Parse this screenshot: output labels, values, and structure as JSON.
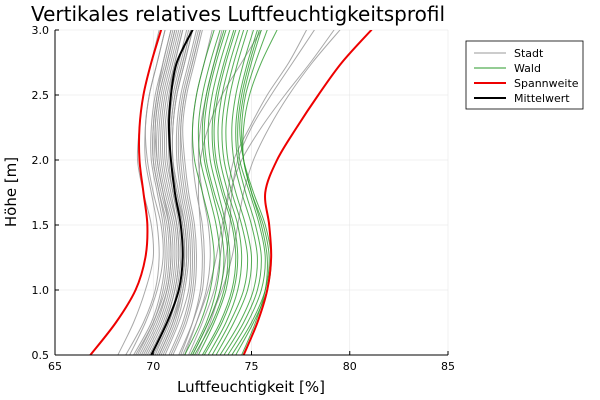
{
  "chart_data": {
    "type": "line",
    "title": "Vertikales relatives Luftfeuchtigkeitsprofil",
    "xlabel": "Luftfeuchtigkeit [%]",
    "ylabel": "Höhe [m]",
    "xlim": [
      65,
      85
    ],
    "ylim": [
      0.5,
      3.0
    ],
    "x_ticks": [
      65,
      70,
      75,
      80,
      85
    ],
    "x_tick_labels": [
      "65",
      "70",
      "75",
      "80",
      "85"
    ],
    "y_ticks": [
      0.5,
      1.0,
      1.5,
      2.0,
      2.5,
      3.0
    ],
    "y_tick_labels": [
      "0.5",
      "1.0",
      "1.5",
      "2.0",
      "2.5",
      "3.0"
    ],
    "grid": true,
    "legend_position": "outside-top-right",
    "colors": {
      "stadt": "#999999",
      "wald": "#2a9a2a",
      "spannweite": "#ee0000",
      "mittelwert": "#000000"
    },
    "y": [
      0.5,
      0.75,
      1.0,
      1.25,
      1.5,
      1.75,
      2.0,
      2.25,
      2.5,
      2.75,
      3.0
    ],
    "series": [
      {
        "name": "Stadt",
        "group": "stadt",
        "values": [
          69.6,
          70.4,
          70.9,
          71.1,
          71.0,
          70.6,
          70.3,
          70.3,
          70.5,
          70.9,
          71.3
        ]
      },
      {
        "name": "",
        "group": "stadt",
        "values": [
          70.3,
          71.0,
          71.5,
          71.7,
          71.6,
          71.3,
          71.0,
          71.0,
          71.2,
          71.6,
          72.0
        ]
      },
      {
        "name": "",
        "group": "stadt",
        "values": [
          68.8,
          69.6,
          70.2,
          70.5,
          70.4,
          70.0,
          69.7,
          69.6,
          69.8,
          70.2,
          70.6
        ]
      },
      {
        "name": "",
        "group": "stadt",
        "values": [
          70.8,
          71.5,
          71.9,
          72.0,
          71.9,
          71.6,
          71.4,
          71.4,
          71.6,
          72.0,
          72.4
        ]
      },
      {
        "name": "",
        "group": "stadt",
        "values": [
          69.2,
          70.0,
          70.6,
          70.8,
          70.7,
          70.3,
          70.0,
          70.0,
          70.2,
          70.5,
          70.9
        ]
      },
      {
        "name": "",
        "group": "stadt",
        "values": [
          70.0,
          70.8,
          71.2,
          71.4,
          71.3,
          71.0,
          70.7,
          70.7,
          70.9,
          71.3,
          71.7
        ]
      },
      {
        "name": "",
        "group": "stadt",
        "values": [
          69.9,
          70.6,
          71.1,
          71.3,
          71.2,
          70.9,
          70.6,
          70.6,
          70.8,
          71.1,
          71.5
        ]
      },
      {
        "name": "",
        "group": "stadt",
        "values": [
          70.5,
          71.2,
          71.6,
          71.8,
          71.7,
          71.4,
          71.2,
          71.2,
          71.4,
          71.8,
          72.2
        ]
      },
      {
        "name": "",
        "group": "stadt",
        "values": [
          68.2,
          69.0,
          69.6,
          70.0,
          69.9,
          69.5,
          69.2,
          69.3,
          69.5,
          69.9,
          70.3
        ]
      },
      {
        "name": "",
        "group": "stadt",
        "values": [
          69.5,
          70.3,
          70.8,
          71.0,
          70.9,
          70.5,
          70.2,
          70.2,
          70.4,
          70.8,
          71.2
        ]
      },
      {
        "name": "",
        "group": "stadt",
        "values": [
          71.0,
          71.7,
          72.1,
          72.2,
          72.1,
          71.8,
          71.6,
          71.5,
          71.7,
          72.1,
          72.5
        ]
      },
      {
        "name": "",
        "group": "stadt",
        "values": [
          70.2,
          70.9,
          71.4,
          71.6,
          71.5,
          71.1,
          70.9,
          70.9,
          71.1,
          71.5,
          71.9
        ]
      },
      {
        "name": "",
        "group": "stadt",
        "values": [
          69.3,
          70.1,
          70.7,
          70.9,
          70.8,
          70.4,
          70.1,
          70.1,
          70.3,
          70.7,
          71.1
        ]
      },
      {
        "name": "",
        "group": "stadt",
        "values": [
          70.6,
          71.3,
          71.8,
          71.9,
          71.8,
          71.5,
          71.3,
          71.3,
          71.5,
          71.9,
          72.3
        ]
      },
      {
        "name": "",
        "group": "stadt",
        "values": [
          69.0,
          69.9,
          70.4,
          70.6,
          70.5,
          70.2,
          69.9,
          69.9,
          70.1,
          70.5,
          70.9
        ]
      },
      {
        "name": "",
        "group": "stadt",
        "values": [
          70.4,
          71.1,
          71.5,
          71.7,
          71.6,
          71.2,
          71.0,
          71.0,
          71.2,
          71.6,
          72.0
        ]
      },
      {
        "name": "",
        "group": "stadt",
        "values": [
          69.7,
          70.5,
          71.0,
          71.2,
          71.1,
          70.7,
          70.4,
          70.4,
          70.6,
          71.0,
          71.4
        ]
      },
      {
        "name": "",
        "group": "stadt",
        "values": [
          70.9,
          71.6,
          72.0,
          72.1,
          72.0,
          71.7,
          71.5,
          71.4,
          71.6,
          72.0,
          72.4
        ]
      },
      {
        "name": "",
        "group": "stadt",
        "values": [
          69.4,
          70.2,
          70.7,
          70.9,
          70.8,
          70.5,
          70.2,
          70.1,
          70.3,
          70.7,
          71.1
        ]
      },
      {
        "name": "",
        "group": "stadt",
        "values": [
          70.1,
          70.8,
          71.3,
          71.5,
          71.4,
          71.0,
          70.8,
          70.8,
          71.0,
          71.4,
          71.8
        ]
      },
      {
        "name": "",
        "group": "stadt",
        "values": [
          71.3,
          72.0,
          72.5,
          72.6,
          72.5,
          72.2,
          72.0,
          72.0,
          72.2,
          72.6,
          73.0
        ]
      },
      {
        "name": "",
        "group": "stadt",
        "values": [
          68.6,
          69.5,
          70.1,
          70.3,
          70.2,
          69.9,
          69.6,
          69.6,
          69.8,
          70.2,
          70.6
        ]
      },
      {
        "name": "",
        "group": "stadt",
        "values": [
          70.3,
          71.0,
          71.4,
          71.6,
          71.5,
          71.2,
          70.9,
          70.9,
          71.1,
          71.5,
          71.9
        ]
      },
      {
        "name": "",
        "group": "stadt",
        "values": [
          69.8,
          70.6,
          71.1,
          71.3,
          71.2,
          70.8,
          70.5,
          70.5,
          70.7,
          71.1,
          71.5
        ]
      },
      {
        "name": "",
        "group": "stadt",
        "values": [
          71.6,
          72.2,
          72.7,
          72.9,
          72.8,
          72.5,
          72.3,
          72.4,
          72.7,
          73.1,
          73.5
        ]
      },
      {
        "name": "",
        "group": "stadt",
        "values": [
          69.1,
          70.0,
          70.5,
          70.7,
          70.6,
          70.3,
          70.0,
          70.0,
          70.2,
          70.6,
          71.0
        ]
      },
      {
        "name": "",
        "group": "stadt",
        "values": [
          72.0,
          72.8,
          73.5,
          74.0,
          74.3,
          74.6,
          75.1,
          75.9,
          76.9,
          78.1,
          79.5
        ]
      },
      {
        "name": "",
        "group": "stadt",
        "values": [
          71.5,
          72.2,
          72.8,
          73.2,
          73.5,
          73.9,
          74.5,
          75.5,
          76.7,
          78.0,
          79.2
        ]
      },
      {
        "name": "",
        "group": "stadt",
        "values": [
          72.2,
          72.9,
          73.4,
          73.7,
          73.9,
          74.0,
          74.3,
          75.0,
          76.0,
          77.1,
          78.2
        ]
      },
      {
        "name": "",
        "group": "stadt",
        "values": [
          71.8,
          72.5,
          73.1,
          73.4,
          73.6,
          73.8,
          74.1,
          74.9,
          75.8,
          76.9,
          77.8
        ]
      },
      {
        "name": "",
        "group": "stadt",
        "values": [
          71.4,
          72.0,
          72.4,
          72.5,
          72.4,
          72.3,
          72.4,
          72.8,
          73.5,
          74.5,
          75.5
        ]
      },
      {
        "name": "Wald",
        "group": "wald",
        "values": [
          72.0,
          72.8,
          73.4,
          73.6,
          73.4,
          73.0,
          72.6,
          72.5,
          72.7,
          73.1,
          73.6
        ]
      },
      {
        "name": "",
        "group": "wald",
        "values": [
          72.5,
          73.4,
          74.0,
          74.2,
          74.0,
          73.5,
          73.1,
          73.0,
          73.2,
          73.6,
          74.1
        ]
      },
      {
        "name": "",
        "group": "wald",
        "values": [
          73.0,
          73.9,
          74.6,
          74.8,
          74.5,
          74.0,
          73.6,
          73.5,
          73.7,
          74.1,
          74.6
        ]
      },
      {
        "name": "",
        "group": "wald",
        "values": [
          73.4,
          74.4,
          75.1,
          75.3,
          75.0,
          74.5,
          74.1,
          74.0,
          74.2,
          74.6,
          75.1
        ]
      },
      {
        "name": "",
        "group": "wald",
        "values": [
          71.6,
          72.4,
          72.9,
          73.1,
          72.9,
          72.5,
          72.1,
          72.0,
          72.2,
          72.6,
          73.1
        ]
      },
      {
        "name": "",
        "group": "wald",
        "values": [
          72.8,
          73.7,
          74.3,
          74.5,
          74.3,
          73.8,
          73.4,
          73.3,
          73.5,
          73.9,
          74.4
        ]
      },
      {
        "name": "",
        "group": "wald",
        "values": [
          73.8,
          74.8,
          75.5,
          75.7,
          75.4,
          74.9,
          74.4,
          74.3,
          74.5,
          74.9,
          75.4
        ]
      },
      {
        "name": "",
        "group": "wald",
        "values": [
          72.3,
          73.1,
          73.7,
          73.9,
          73.7,
          73.3,
          72.9,
          72.8,
          73.0,
          73.4,
          73.9
        ]
      },
      {
        "name": "",
        "group": "wald",
        "values": [
          74.2,
          75.1,
          75.8,
          76.0,
          75.7,
          75.1,
          74.6,
          74.4,
          74.6,
          75.0,
          75.5
        ]
      },
      {
        "name": "",
        "group": "wald",
        "values": [
          71.9,
          72.7,
          73.2,
          73.4,
          73.2,
          72.8,
          72.4,
          72.3,
          72.5,
          72.9,
          73.4
        ]
      },
      {
        "name": "",
        "group": "wald",
        "values": [
          73.2,
          74.1,
          74.8,
          75.0,
          74.7,
          74.2,
          73.8,
          73.7,
          73.9,
          74.3,
          74.8
        ]
      },
      {
        "name": "",
        "group": "wald",
        "values": [
          72.6,
          73.5,
          74.1,
          74.3,
          74.1,
          73.6,
          73.2,
          73.1,
          73.3,
          73.7,
          74.2
        ]
      },
      {
        "name": "",
        "group": "wald",
        "values": [
          74.5,
          75.2,
          75.7,
          75.8,
          75.5,
          75.0,
          74.6,
          74.6,
          74.9,
          75.5,
          76.3
        ]
      },
      {
        "name": "",
        "group": "wald",
        "values": [
          73.6,
          74.6,
          75.3,
          75.5,
          75.2,
          74.7,
          74.3,
          74.2,
          74.4,
          74.8,
          75.3
        ]
      },
      {
        "name": "",
        "group": "wald",
        "values": [
          72.1,
          73.0,
          73.6,
          73.8,
          73.6,
          73.1,
          72.7,
          72.6,
          72.8,
          73.2,
          73.7
        ]
      },
      {
        "name": "",
        "group": "wald",
        "values": [
          74.0,
          75.0,
          75.7,
          75.9,
          75.6,
          75.0,
          74.6,
          74.5,
          74.7,
          75.2,
          75.8
        ]
      },
      {
        "name": "Spannweite",
        "group": "spannweite",
        "values": [
          66.8,
          68.1,
          69.1,
          69.6,
          69.7,
          69.5,
          69.3,
          69.3,
          69.5,
          69.9,
          70.4
        ]
      },
      {
        "name": "",
        "group": "spannweite",
        "values": [
          74.6,
          75.3,
          75.8,
          76.0,
          75.9,
          75.7,
          76.3,
          77.3,
          78.4,
          79.6,
          81.1
        ]
      },
      {
        "name": "Mittelwert",
        "group": "mittelwert",
        "values": [
          69.9,
          70.7,
          71.3,
          71.5,
          71.4,
          71.1,
          70.9,
          70.8,
          70.9,
          71.2,
          72.0
        ]
      }
    ],
    "legend": [
      {
        "label": "Stadt",
        "group": "stadt"
      },
      {
        "label": "Wald",
        "group": "wald"
      },
      {
        "label": "Spannweite",
        "group": "spannweite"
      },
      {
        "label": "Mittelwert",
        "group": "mittelwert"
      }
    ]
  }
}
